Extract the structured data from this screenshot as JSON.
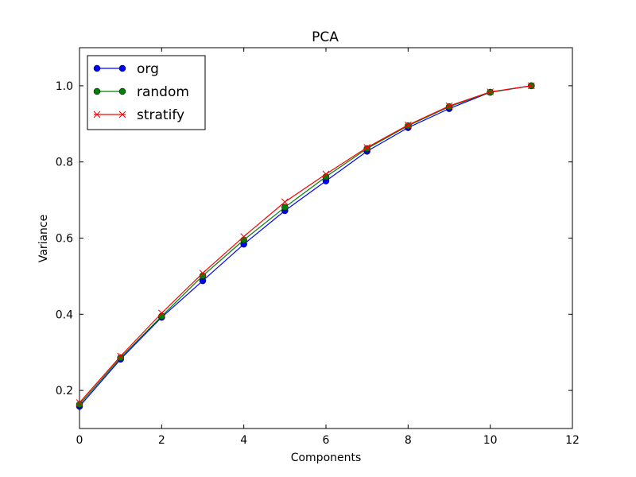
{
  "chart_data": {
    "type": "line",
    "title": "PCA",
    "xlabel": "Components",
    "ylabel": "Variance",
    "xlim": [
      0,
      12
    ],
    "ylim": [
      0.1,
      1.1
    ],
    "xticks": [
      "0",
      "2",
      "4",
      "6",
      "8",
      "10",
      "12"
    ],
    "yticks": [
      "0.2",
      "0.4",
      "0.6",
      "0.8",
      "1.0"
    ],
    "grid": false,
    "legend_position": "top-left",
    "x": [
      0,
      1,
      2,
      3,
      4,
      5,
      6,
      7,
      8,
      9,
      10,
      11
    ],
    "series": [
      {
        "name": "org",
        "color": "#0000ff",
        "marker": "circle",
        "values": [
          0.158,
          0.282,
          0.392,
          0.488,
          0.584,
          0.672,
          0.75,
          0.828,
          0.89,
          0.94,
          0.983,
          1.0
        ]
      },
      {
        "name": "random",
        "color": "#008000",
        "marker": "circle",
        "values": [
          0.163,
          0.286,
          0.395,
          0.501,
          0.595,
          0.681,
          0.761,
          0.835,
          0.895,
          0.945,
          0.983,
          1.0
        ]
      },
      {
        "name": "stratify",
        "color": "#ff0000",
        "marker": "x",
        "values": [
          0.168,
          0.29,
          0.403,
          0.508,
          0.604,
          0.695,
          0.768,
          0.838,
          0.897,
          0.947,
          0.984,
          1.0
        ]
      }
    ]
  }
}
